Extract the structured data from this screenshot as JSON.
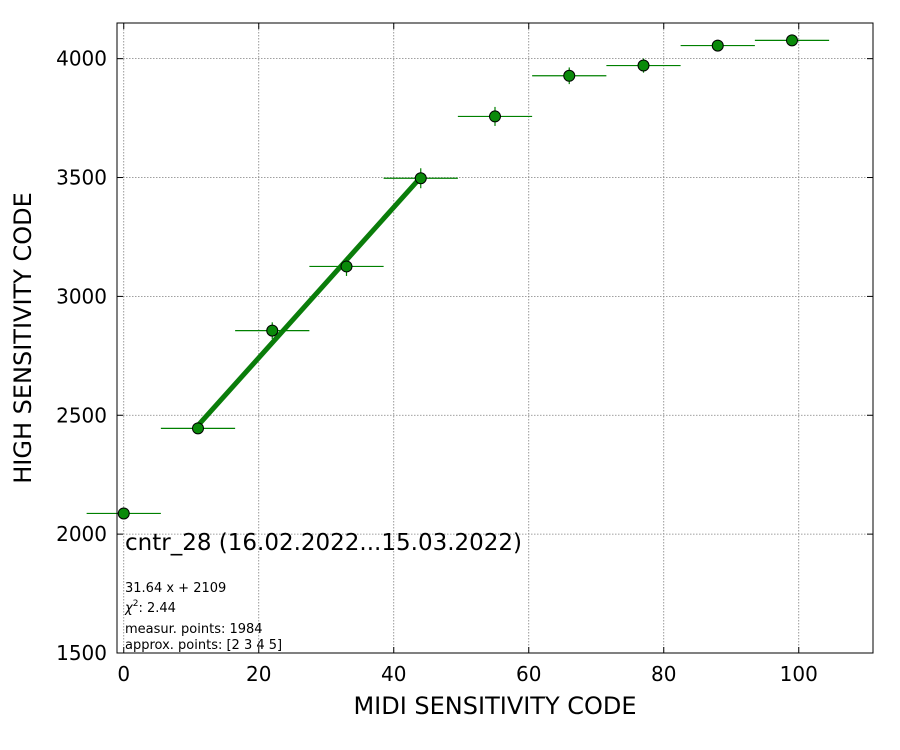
{
  "chart_data": {
    "type": "scatter",
    "xlabel": "MIDI SENSITIVITY CODE",
    "ylabel": "HIGH SENSITIVITY CODE",
    "xlim": [
      -1,
      111
    ],
    "ylim": [
      1500,
      4150
    ],
    "xticks": [
      0,
      20,
      40,
      60,
      80,
      100
    ],
    "yticks": [
      1500,
      2000,
      2500,
      3000,
      3500,
      4000
    ],
    "grid": true,
    "points": [
      {
        "x": 0,
        "y": 2087,
        "xerr": 5.5,
        "yerr": 15
      },
      {
        "x": 11,
        "y": 2445,
        "xerr": 5.5,
        "yerr": 22
      },
      {
        "x": 22,
        "y": 2856,
        "xerr": 5.5,
        "yerr": 35
      },
      {
        "x": 33,
        "y": 3126,
        "xerr": 5.5,
        "yerr": 40
      },
      {
        "x": 44,
        "y": 3497,
        "xerr": 5.5,
        "yerr": 42
      },
      {
        "x": 55,
        "y": 3757,
        "xerr": 5.5,
        "yerr": 40
      },
      {
        "x": 66,
        "y": 3928,
        "xerr": 5.5,
        "yerr": 35
      },
      {
        "x": 77,
        "y": 3971,
        "xerr": 5.5,
        "yerr": 30
      },
      {
        "x": 88,
        "y": 4055,
        "xerr": 5.5,
        "yerr": 18
      },
      {
        "x": 99,
        "y": 4077,
        "xerr": 5.5,
        "yerr": 15
      }
    ],
    "fit": {
      "slope": 31.64,
      "intercept": 2109,
      "x_range": [
        11,
        44
      ]
    },
    "colors": {
      "marker": "#0a8a0a",
      "fit": "#0a7d0a",
      "errorbar": "#008000",
      "grid": "#808080"
    },
    "annotations": {
      "title": "cntr_28 (16.02.2022...15.03.2022)",
      "equation": "31.64 x + 2109",
      "chi2_label": "χ",
      "chi2_power": "2",
      "chi2_value": ": 2.44",
      "measur": "measur. points: 1984",
      "approx": "approx. points: [2 3 4 5]"
    }
  }
}
